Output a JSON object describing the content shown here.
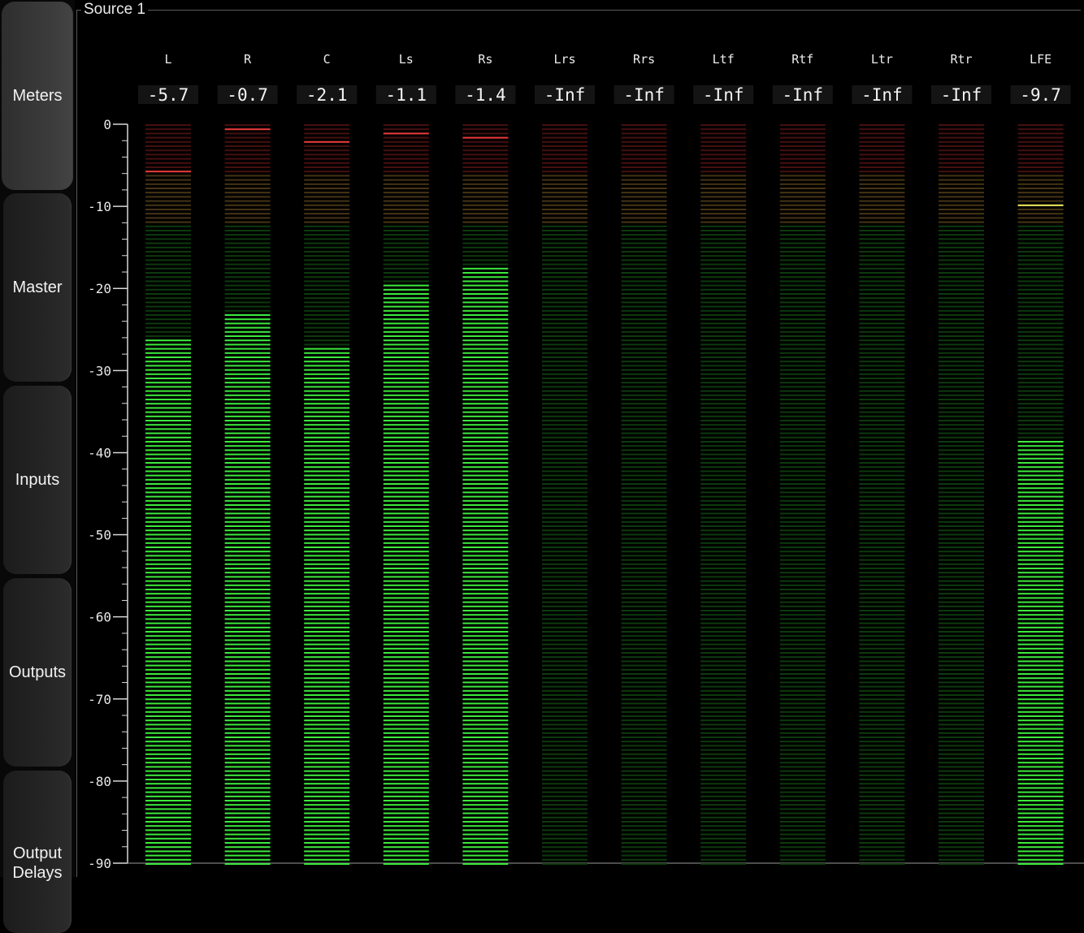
{
  "sidebar": {
    "tabs": [
      {
        "label": "Meters",
        "active": true
      },
      {
        "label": "Master",
        "active": false
      },
      {
        "label": "Inputs",
        "active": false
      },
      {
        "label": "Outputs",
        "active": false
      },
      {
        "label": "Output Delays",
        "label_lines": [
          "Output",
          "Delays"
        ],
        "active": false
      }
    ]
  },
  "panel": {
    "title": "Source 1"
  },
  "meters": {
    "scale": {
      "min_db": -90,
      "max_db": 0,
      "labels": [
        "0",
        "-10",
        "-20",
        "-30",
        "-40",
        "-50",
        "-60",
        "-70",
        "-80",
        "-90"
      ],
      "label_values": [
        0,
        -10,
        -20,
        -30,
        -40,
        -50,
        -60,
        -70,
        -80,
        -90
      ]
    },
    "colors": {
      "green_on": "#3cea3c",
      "green_off": "#0d3a0d",
      "amber_on": "#e8c84a",
      "amber_off": "#463414",
      "red_on": "#f03a3a",
      "red_off": "#460f0f",
      "peak_hold": "#f4f060"
    },
    "channels": [
      {
        "name": "L",
        "value": "-5.7",
        "level_db": -26,
        "peak_db": -5.7
      },
      {
        "name": "R",
        "value": "-0.7",
        "level_db": -23,
        "peak_db": -0.7
      },
      {
        "name": "C",
        "value": "-2.1",
        "level_db": -27,
        "peak_db": -2.1
      },
      {
        "name": "Ls",
        "value": "-1.1",
        "level_db": -19.5,
        "peak_db": -1.1
      },
      {
        "name": "Rs",
        "value": "-1.4",
        "level_db": -17,
        "peak_db": -1.4
      },
      {
        "name": "Lrs",
        "value": "-Inf",
        "level_db": null,
        "peak_db": null
      },
      {
        "name": "Rrs",
        "value": "-Inf",
        "level_db": null,
        "peak_db": null
      },
      {
        "name": "Ltf",
        "value": "-Inf",
        "level_db": null,
        "peak_db": null
      },
      {
        "name": "Rtf",
        "value": "-Inf",
        "level_db": null,
        "peak_db": null
      },
      {
        "name": "Ltr",
        "value": "-Inf",
        "level_db": null,
        "peak_db": null
      },
      {
        "name": "Rtr",
        "value": "-Inf",
        "level_db": null,
        "peak_db": null
      },
      {
        "name": "LFE",
        "value": "-9.7",
        "level_db": -38.5,
        "peak_db": -9.7
      }
    ]
  }
}
